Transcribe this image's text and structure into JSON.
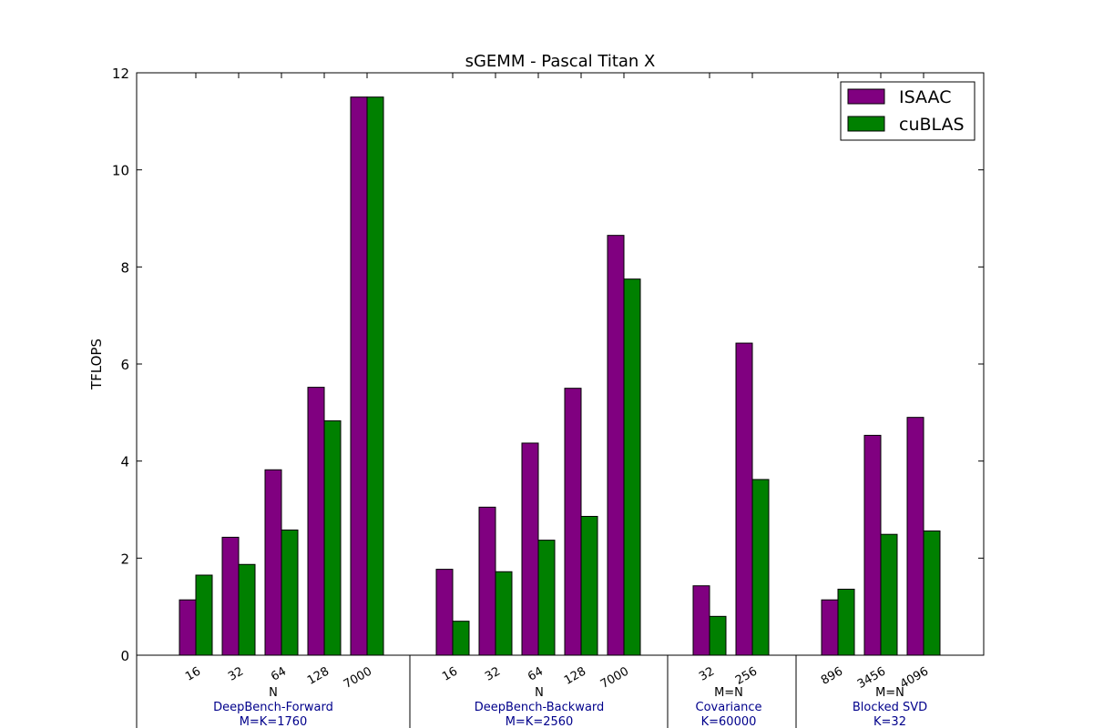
{
  "chart_data": {
    "type": "bar",
    "title": "sGEMM - Pascal Titan X",
    "ylabel": "TFLOPS",
    "xlabel": "",
    "ylim": [
      0,
      12
    ],
    "yticks": [
      "0",
      "2",
      "4",
      "6",
      "8",
      "10",
      "12"
    ],
    "grid": false,
    "legend_position": "top-right",
    "series": [
      {
        "name": "ISAAC",
        "color": "#800080"
      },
      {
        "name": "cuBLAS",
        "color": "#008000"
      }
    ],
    "groups": [
      {
        "name": "DeepBench-Forward",
        "param": "N",
        "condition": "M=K=1760",
        "categories": [
          "16",
          "32",
          "64",
          "128",
          "7000"
        ],
        "values": {
          "ISAAC": [
            1.14,
            2.43,
            3.82,
            5.52,
            11.5
          ],
          "cuBLAS": [
            1.65,
            1.87,
            2.58,
            4.83,
            11.5
          ]
        }
      },
      {
        "name": "DeepBench-Backward",
        "param": "N",
        "condition": "M=K=2560",
        "categories": [
          "16",
          "32",
          "64",
          "128",
          "7000"
        ],
        "values": {
          "ISAAC": [
            1.77,
            3.05,
            4.37,
            5.5,
            8.65
          ],
          "cuBLAS": [
            0.7,
            1.72,
            2.37,
            2.86,
            7.75
          ]
        }
      },
      {
        "name": "Covariance",
        "param": "M=N",
        "condition": "K=60000",
        "categories": [
          "32",
          "256"
        ],
        "values": {
          "ISAAC": [
            1.43,
            6.43
          ],
          "cuBLAS": [
            0.8,
            3.62
          ]
        }
      },
      {
        "name": "Blocked SVD",
        "param": "M=N",
        "condition": "K=32",
        "categories": [
          "896",
          "3456",
          "4096"
        ],
        "values": {
          "ISAAC": [
            1.14,
            4.53,
            4.9
          ],
          "cuBLAS": [
            1.36,
            2.49,
            2.56
          ]
        }
      }
    ]
  }
}
